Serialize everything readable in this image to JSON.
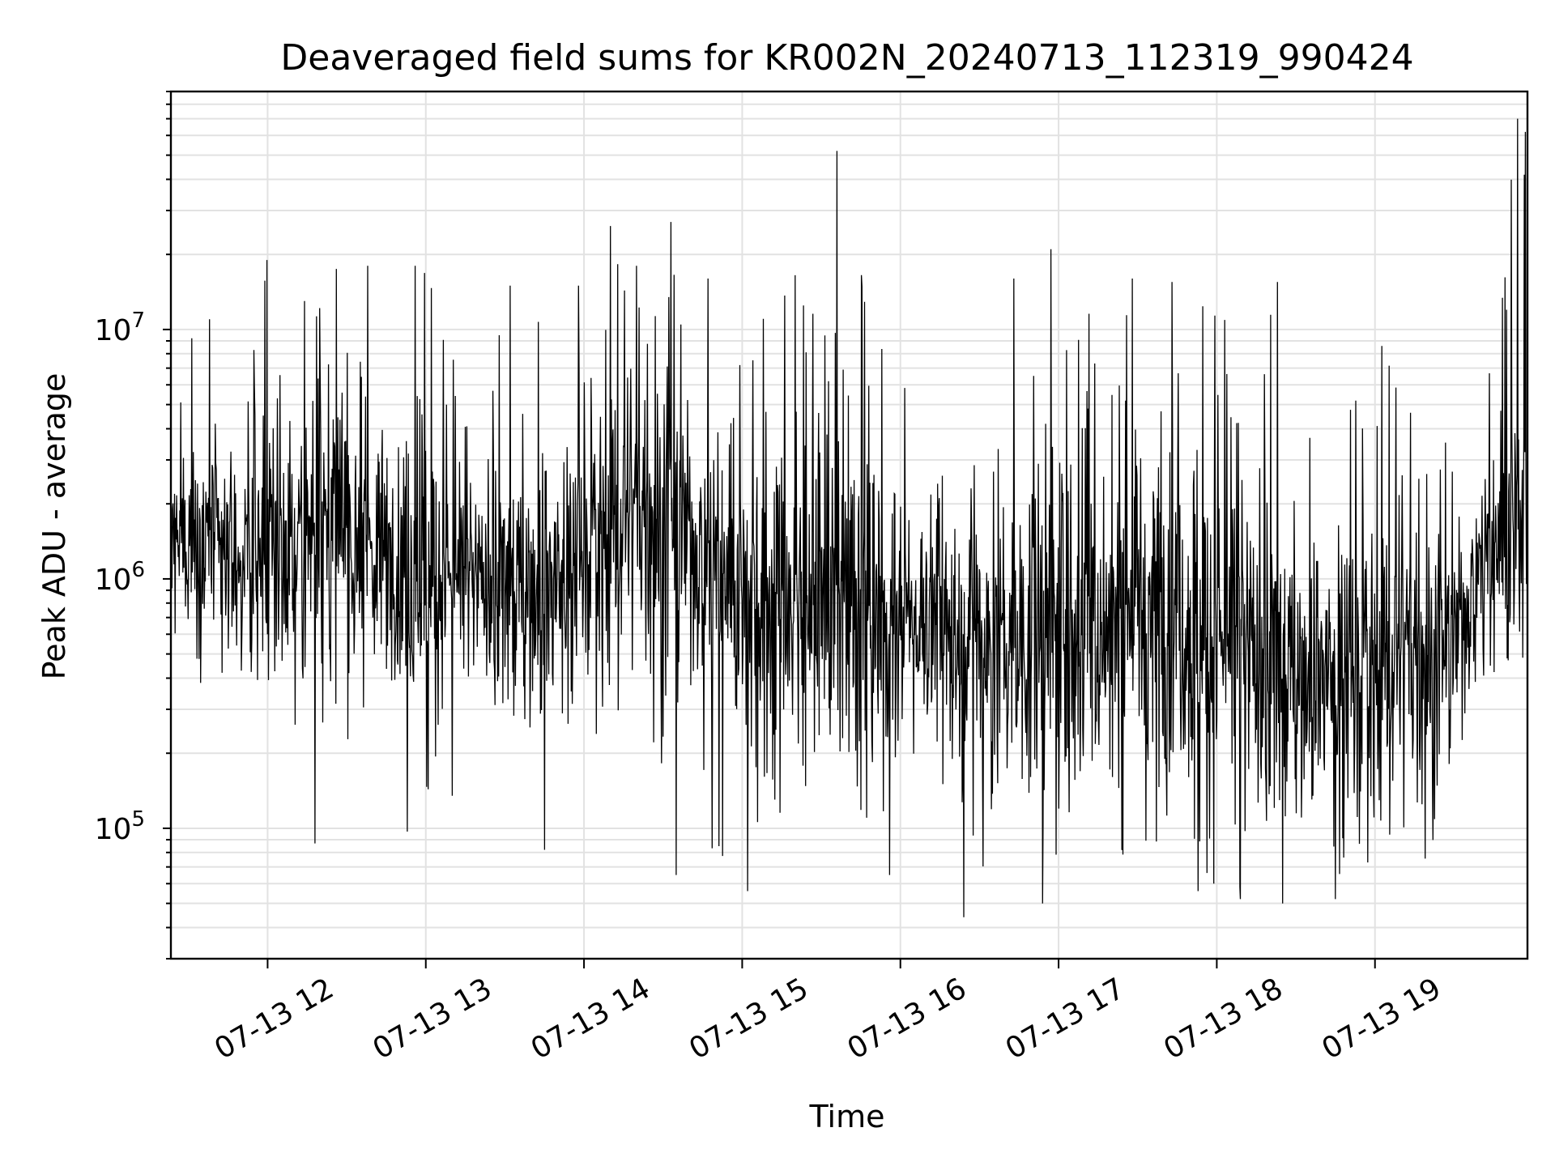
{
  "chart_data": {
    "type": "line",
    "title": "Deaveraged field sums for KR002N_20240713_112319_990424",
    "xlabel": "Time",
    "ylabel": "Peak ADU - average",
    "x_type": "datetime",
    "xlim": [
      "2024-07-13T11:23:19",
      "2024-07-13T19:57:50"
    ],
    "y_scale": "log",
    "ylim": [
      30000,
      90000000
    ],
    "grid": true,
    "legend": "none",
    "line_color": "#000000",
    "x_ticks": [
      {
        "value": "2024-07-13T12:00:00",
        "label": "07-13 12"
      },
      {
        "value": "2024-07-13T13:00:00",
        "label": "07-13 13"
      },
      {
        "value": "2024-07-13T14:00:00",
        "label": "07-13 14"
      },
      {
        "value": "2024-07-13T15:00:00",
        "label": "07-13 15"
      },
      {
        "value": "2024-07-13T16:00:00",
        "label": "07-13 16"
      },
      {
        "value": "2024-07-13T17:00:00",
        "label": "07-13 17"
      },
      {
        "value": "2024-07-13T18:00:00",
        "label": "07-13 18"
      },
      {
        "value": "2024-07-13T19:00:00",
        "label": "07-13 19"
      }
    ],
    "y_ticks": [
      {
        "value": 100000,
        "base": "10",
        "exp": "5"
      },
      {
        "value": 1000000,
        "base": "10",
        "exp": "6"
      },
      {
        "value": 10000000,
        "base": "10",
        "exp": "7"
      }
    ],
    "series": [
      {
        "x": [
          "2024-07-13T11:23:19",
          "2024-07-13T11:30:00",
          "2024-07-13T11:40:00",
          "2024-07-13T11:50:00",
          "2024-07-13T12:00:00",
          "2024-07-13T12:10:00",
          "2024-07-13T12:20:00",
          "2024-07-13T12:30:00",
          "2024-07-13T12:40:00",
          "2024-07-13T12:50:00",
          "2024-07-13T13:00:00",
          "2024-07-13T13:10:00",
          "2024-07-13T13:20:00",
          "2024-07-13T13:30:00",
          "2024-07-13T13:40:00",
          "2024-07-13T13:50:00",
          "2024-07-13T14:00:00",
          "2024-07-13T14:10:00",
          "2024-07-13T14:20:00",
          "2024-07-13T14:30:00",
          "2024-07-13T14:40:00",
          "2024-07-13T14:50:00",
          "2024-07-13T15:00:00",
          "2024-07-13T15:10:00",
          "2024-07-13T15:20:00",
          "2024-07-13T15:30:00",
          "2024-07-13T15:40:00",
          "2024-07-13T15:50:00",
          "2024-07-13T16:00:00",
          "2024-07-13T16:10:00",
          "2024-07-13T16:20:00",
          "2024-07-13T16:30:00",
          "2024-07-13T16:40:00",
          "2024-07-13T16:50:00",
          "2024-07-13T17:00:00",
          "2024-07-13T17:10:00",
          "2024-07-13T17:20:00",
          "2024-07-13T17:30:00",
          "2024-07-13T17:40:00",
          "2024-07-13T17:50:00",
          "2024-07-13T18:00:00",
          "2024-07-13T18:10:00",
          "2024-07-13T18:20:00",
          "2024-07-13T18:30:00",
          "2024-07-13T18:40:00",
          "2024-07-13T18:50:00",
          "2024-07-13T19:00:00",
          "2024-07-13T19:10:00",
          "2024-07-13T19:20:00",
          "2024-07-13T19:30:00",
          "2024-07-13T19:40:00",
          "2024-07-13T19:50:00",
          "2024-07-13T19:57:50"
        ],
        "typical": [
          1400000,
          1500000,
          1350000,
          1200000,
          1150000,
          1300000,
          1600000,
          1550000,
          1300000,
          1250000,
          1100000,
          1000000,
          950000,
          900000,
          950000,
          1000000,
          1350000,
          1700000,
          1800000,
          1750000,
          1400000,
          1100000,
          950000,
          900000,
          850000,
          800000,
          820000,
          750000,
          700000,
          720000,
          650000,
          620000,
          560000,
          550000,
          580000,
          600000,
          650000,
          900000,
          800000,
          650000,
          580000,
          480000,
          440000,
          420000,
          440000,
          460000,
          470000,
          500000,
          500000,
          520000,
          1200000,
          1600000,
          2200000
        ],
        "low": [
          600000,
          550000,
          250000,
          350000,
          140000,
          210000,
          230000,
          140000,
          260000,
          430000,
          95000,
          600000,
          290000,
          200000,
          160000,
          200000,
          300000,
          180000,
          300000,
          160000,
          300000,
          65000,
          110000,
          55000,
          90000,
          140000,
          170000,
          80000,
          130000,
          160000,
          90000,
          44000,
          130000,
          80000,
          48000,
          100000,
          70000,
          90000,
          65000,
          80000,
          55000,
          50000,
          75000,
          55000,
          60000,
          55000,
          80000,
          60000,
          70000,
          170000,
          400000,
          430000,
          500000
        ],
        "high": [
          3000000,
          11000000,
          5800000,
          4200000,
          19000000,
          5000000,
          13000000,
          17000000,
          18000000,
          14000000,
          18000000,
          8000000,
          5500000,
          14000000,
          14500000,
          15000000,
          7500000,
          26000000,
          17500000,
          27000000,
          8500000,
          6000000,
          8000000,
          14500000,
          16500000,
          10000000,
          52000000,
          9000000,
          7200000,
          5500000,
          4800000,
          5000000,
          3500000,
          16000000,
          21000000,
          13000000,
          8000000,
          16000000,
          14500000,
          12000000,
          14000000,
          7500000,
          15500000,
          6000000,
          4000000,
          6500000,
          10000000,
          9000000,
          5000000,
          3000000,
          6500000,
          40000000,
          70000000
        ],
        "spikes": [
          {
            "x": "2024-07-13T11:38:00",
            "y": 11000000
          },
          {
            "x": "2024-07-13T11:59:40",
            "y": 19000000
          },
          {
            "x": "2024-07-13T12:14:00",
            "y": 13000000
          },
          {
            "x": "2024-07-13T12:18:00",
            "y": 87000
          },
          {
            "x": "2024-07-13T12:26:00",
            "y": 17500000
          },
          {
            "x": "2024-07-13T12:38:00",
            "y": 18000000
          },
          {
            "x": "2024-07-13T12:53:00",
            "y": 97000
          },
          {
            "x": "2024-07-13T12:56:00",
            "y": 18000000
          },
          {
            "x": "2024-07-13T13:10:00",
            "y": 135000
          },
          {
            "x": "2024-07-13T13:32:00",
            "y": 15000000
          },
          {
            "x": "2024-07-13T13:45:00",
            "y": 82000
          },
          {
            "x": "2024-07-13T13:58:00",
            "y": 15000000
          },
          {
            "x": "2024-07-13T14:10:00",
            "y": 26000000
          },
          {
            "x": "2024-07-13T14:20:00",
            "y": 18000000
          },
          {
            "x": "2024-07-13T14:33:00",
            "y": 27000000
          },
          {
            "x": "2024-07-13T14:35:00",
            "y": 65000
          },
          {
            "x": "2024-07-13T14:47:00",
            "y": 16000000
          },
          {
            "x": "2024-07-13T15:02:00",
            "y": 56000
          },
          {
            "x": "2024-07-13T15:20:00",
            "y": 16500000
          },
          {
            "x": "2024-07-13T15:36:00",
            "y": 52000000
          },
          {
            "x": "2024-07-13T15:56:00",
            "y": 65000
          },
          {
            "x": "2024-07-13T16:24:00",
            "y": 44000
          },
          {
            "x": "2024-07-13T16:43:00",
            "y": 16000000
          },
          {
            "x": "2024-07-13T16:54:00",
            "y": 50000
          },
          {
            "x": "2024-07-13T16:57:00",
            "y": 21000000
          },
          {
            "x": "2024-07-13T17:28:00",
            "y": 16000000
          },
          {
            "x": "2024-07-13T17:43:00",
            "y": 15500000
          },
          {
            "x": "2024-07-13T17:53:00",
            "y": 56000
          },
          {
            "x": "2024-07-13T18:09:00",
            "y": 52000
          },
          {
            "x": "2024-07-13T18:23:00",
            "y": 15500000
          },
          {
            "x": "2024-07-13T18:25:00",
            "y": 50000
          },
          {
            "x": "2024-07-13T18:45:00",
            "y": 52000
          },
          {
            "x": "2024-07-13T19:50:00",
            "y": 12000000
          },
          {
            "x": "2024-07-13T19:54:00",
            "y": 70000000
          },
          {
            "x": "2024-07-13T19:57:00",
            "y": 62000000
          }
        ]
      }
    ]
  }
}
